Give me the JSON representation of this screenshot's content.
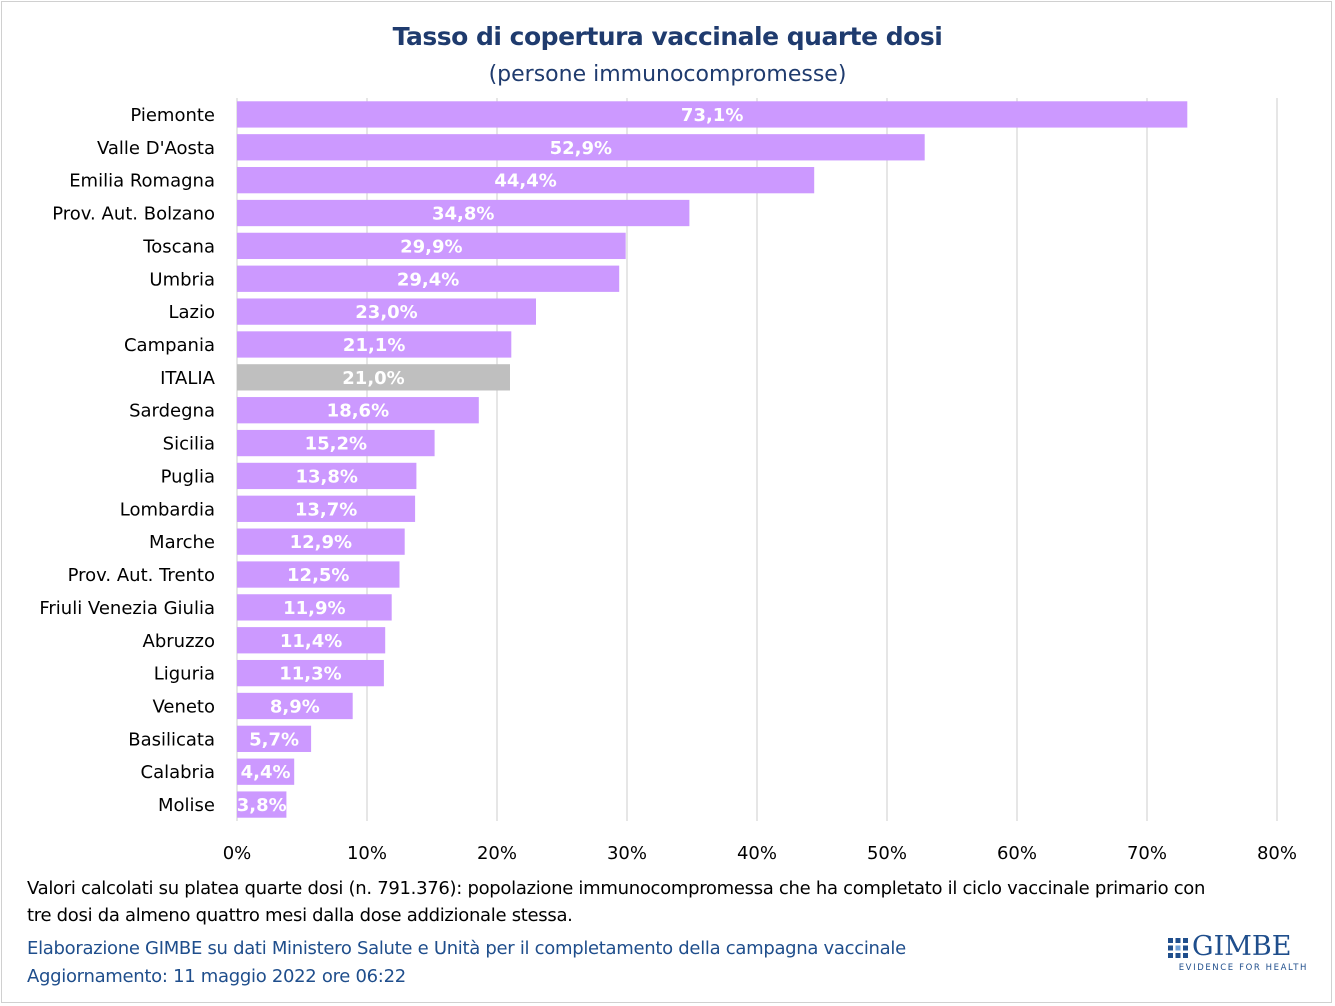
{
  "title": "Tasso di copertura vaccinale quarte dosi",
  "subtitle": "(persone immunocompromesse)",
  "chart_data": {
    "type": "bar",
    "orientation": "horizontal",
    "categories": [
      "Piemonte",
      "Valle D'Aosta",
      "Emilia Romagna",
      "Prov. Aut. Bolzano",
      "Toscana",
      "Umbria",
      "Lazio",
      "Campania",
      "ITALIA",
      "Sardegna",
      "Sicilia",
      "Puglia",
      "Lombardia",
      "Marche",
      "Prov. Aut. Trento",
      "Friuli Venezia Giulia",
      "Abruzzo",
      "Liguria",
      "Veneto",
      "Basilicata",
      "Calabria",
      "Molise"
    ],
    "values": [
      73.1,
      52.9,
      44.4,
      34.8,
      29.9,
      29.4,
      23.0,
      21.1,
      21.0,
      18.6,
      15.2,
      13.8,
      13.7,
      12.9,
      12.5,
      11.9,
      11.4,
      11.3,
      8.9,
      5.7,
      4.4,
      3.8
    ],
    "value_labels": [
      "73,1%",
      "52,9%",
      "44,4%",
      "34,8%",
      "29,9%",
      "29,4%",
      "23,0%",
      "21,1%",
      "21,0%",
      "18,6%",
      "15,2%",
      "13,8%",
      "13,7%",
      "12,9%",
      "12,5%",
      "11,9%",
      "11,4%",
      "11,3%",
      "8,9%",
      "5,7%",
      "4,4%",
      "3,8%"
    ],
    "highlight_category": "ITALIA",
    "xlim": [
      0,
      80
    ],
    "x_ticks": [
      0,
      10,
      20,
      30,
      40,
      50,
      60,
      70,
      80
    ],
    "x_tick_labels": [
      "0%",
      "10%",
      "20%",
      "30%",
      "40%",
      "50%",
      "60%",
      "70%",
      "80%"
    ],
    "grid": "vertical",
    "colors": {
      "bar": "#cc99ff",
      "highlight": "#bfbfbf",
      "grid": "#d9d9d9",
      "value_label": "#ffffff"
    }
  },
  "footnote_lines": [
    "Valori calcolati su platea quarte dosi (n. 791.376): popolazione immunocompromessa che ha completato il ciclo vaccinale primario con",
    "tre dosi da almeno quattro mesi dalla dose addizionale stessa."
  ],
  "source_line": "Elaborazione GIMBE su dati Ministero Salute e Unità per il completamento della campagna vaccinale",
  "updated_line": "Aggiornamento: 11 maggio 2022 ore 06:22",
  "logo": {
    "name": "GIMBE",
    "tagline": "EVIDENCE FOR HEALTH",
    "color": "#1f4e8c"
  }
}
